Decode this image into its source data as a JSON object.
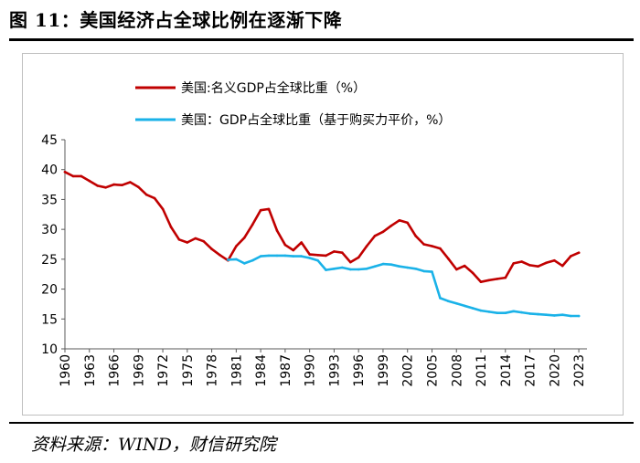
{
  "figure": {
    "title": "图 11：美国经济占全球比例在逐渐下降",
    "source": "资料来源：WIND，财信研究院"
  },
  "colors": {
    "nominal": "#c00000",
    "ppp": "#1ab2e8",
    "axis": "#595959"
  },
  "chart_data": {
    "type": "line",
    "title": "",
    "xlabel": "",
    "ylabel": "",
    "ylim": [
      10,
      45
    ],
    "xlim": [
      1960,
      2024
    ],
    "yticks": [
      10,
      15,
      20,
      25,
      30,
      35,
      40,
      45
    ],
    "xticks": [
      1960,
      1963,
      1966,
      1969,
      1972,
      1975,
      1978,
      1981,
      1984,
      1987,
      1990,
      1993,
      1996,
      1999,
      2002,
      2005,
      2008,
      2011,
      2014,
      2017,
      2020,
      2023
    ],
    "legend_position": "top-center",
    "series": [
      {
        "name": "美国:名义GDP占全球比重（%）",
        "x": [
          1960,
          1961,
          1962,
          1963,
          1964,
          1965,
          1966,
          1967,
          1968,
          1969,
          1970,
          1971,
          1972,
          1973,
          1974,
          1975,
          1976,
          1977,
          1978,
          1979,
          1980,
          1981,
          1982,
          1983,
          1984,
          1985,
          1986,
          1987,
          1988,
          1989,
          1990,
          1991,
          1992,
          1993,
          1994,
          1995,
          1996,
          1997,
          1998,
          1999,
          2000,
          2001,
          2002,
          2003,
          2004,
          2005,
          2006,
          2007,
          2008,
          2009,
          2010,
          2011,
          2012,
          2013,
          2014,
          2015,
          2016,
          2017,
          2018,
          2019,
          2020,
          2021,
          2022,
          2023
        ],
        "values": [
          39.6,
          38.9,
          38.9,
          38.1,
          37.3,
          37.0,
          37.5,
          37.4,
          37.9,
          37.1,
          35.8,
          35.2,
          33.4,
          30.4,
          28.3,
          27.8,
          28.5,
          28.0,
          26.7,
          25.7,
          24.8,
          27.2,
          28.6,
          30.8,
          33.2,
          33.4,
          29.8,
          27.4,
          26.5,
          27.8,
          25.8,
          25.7,
          25.6,
          26.3,
          26.1,
          24.5,
          25.3,
          27.2,
          28.9,
          29.6,
          30.6,
          31.5,
          31.1,
          28.9,
          27.5,
          27.2,
          26.8,
          25.1,
          23.3,
          23.9,
          22.7,
          21.2,
          21.5,
          21.7,
          21.9,
          24.3,
          24.6,
          24.0,
          23.8,
          24.4,
          24.8,
          23.9,
          25.5,
          26.1
        ]
      },
      {
        "name": "美国：GDP占全球比重（基于购买力平价，%）",
        "x": [
          1980,
          1981,
          1982,
          1983,
          1984,
          1985,
          1986,
          1987,
          1988,
          1989,
          1990,
          1991,
          1992,
          1993,
          1994,
          1995,
          1996,
          1997,
          1998,
          1999,
          2000,
          2001,
          2002,
          2003,
          2004,
          2005,
          2006,
          2007,
          2008,
          2009,
          2010,
          2011,
          2012,
          2013,
          2014,
          2015,
          2016,
          2017,
          2018,
          2019,
          2020,
          2021,
          2022,
          2023
        ],
        "values": [
          24.9,
          25.0,
          24.3,
          24.8,
          25.5,
          25.6,
          25.6,
          25.6,
          25.5,
          25.5,
          25.2,
          24.8,
          23.2,
          23.4,
          23.6,
          23.3,
          23.3,
          23.4,
          23.8,
          24.2,
          24.1,
          23.8,
          23.6,
          23.4,
          23.0,
          22.9,
          18.5,
          18.0,
          17.6,
          17.2,
          16.8,
          16.4,
          16.2,
          16.0,
          16.0,
          16.3,
          16.1,
          15.9,
          15.8,
          15.7,
          15.6,
          15.7,
          15.5,
          15.5
        ]
      }
    ]
  }
}
